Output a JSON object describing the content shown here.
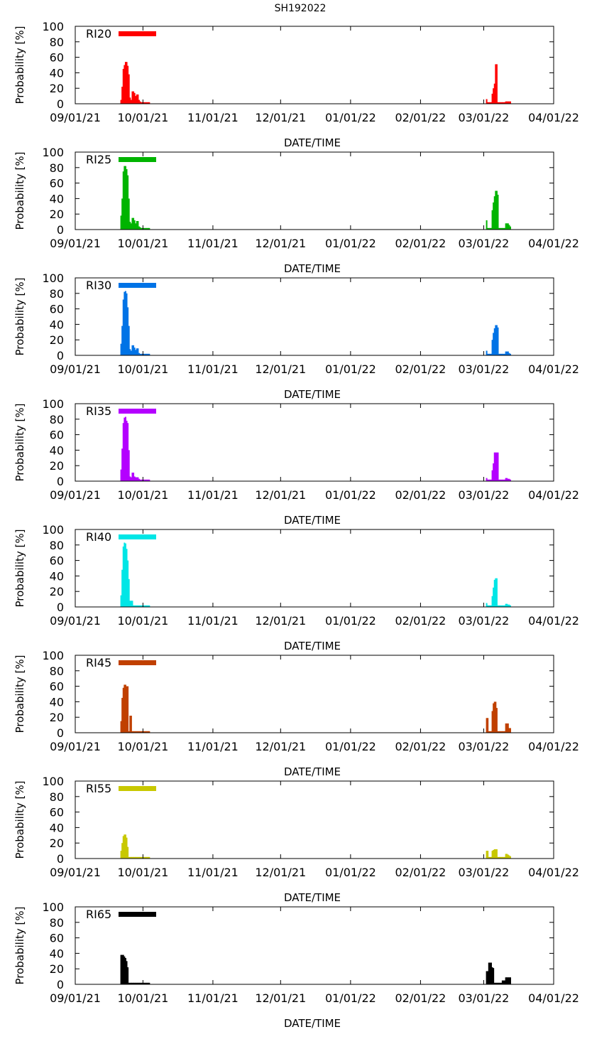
{
  "chart_data": {
    "type": "bar",
    "title": "SH192022",
    "xlabel": "DATE/TIME",
    "ylabel": "Probability [%]",
    "ylim": [
      0,
      100
    ],
    "yticks": [
      "0",
      "20",
      "40",
      "60",
      "80",
      "100"
    ],
    "x_ticks": [
      "09/01/21",
      "10/01/21",
      "11/01/21",
      "12/01/21",
      "01/01/22",
      "02/01/22",
      "03/01/22",
      "04/01/22"
    ],
    "x_range_days": [
      0,
      212
    ],
    "legend_location": "top-left",
    "panels": [
      {
        "name": "RI20",
        "color": "#ff0000",
        "series": [
          {
            "start_day": 20.0,
            "day_step": 0.5,
            "values": [
              5,
              22,
              45,
              50,
              54,
              54,
              49,
              38,
              8,
              5,
              16,
              16,
              14,
              10,
              12,
              12,
              5,
              3,
              2,
              2,
              2,
              2,
              2,
              2,
              2,
              2
            ]
          },
          {
            "start_day": 182.0,
            "day_step": 0.5,
            "values": [
              6,
              2,
              2,
              2,
              2,
              13,
              20,
              26,
              51,
              51,
              2,
              2,
              2,
              2,
              2,
              2,
              2,
              3,
              3,
              3,
              3,
              3
            ]
          }
        ]
      },
      {
        "name": "RI25",
        "color": "#00b400",
        "series": [
          {
            "start_day": 20.0,
            "day_step": 0.5,
            "values": [
              18,
              40,
              75,
              82,
              82,
              78,
              70,
              40,
              10,
              8,
              15,
              15,
              12,
              8,
              11,
              11,
              4,
              3,
              2,
              2,
              2,
              2,
              2,
              2,
              2,
              2
            ]
          },
          {
            "start_day": 182.0,
            "day_step": 0.5,
            "values": [
              12,
              2,
              2,
              2,
              2,
              25,
              35,
              43,
              50,
              50,
              45,
              2,
              2,
              2,
              2,
              2,
              2,
              8,
              8,
              8,
              6,
              4
            ]
          }
        ]
      },
      {
        "name": "RI30",
        "color": "#0073e6",
        "series": [
          {
            "start_day": 20.0,
            "day_step": 0.5,
            "values": [
              15,
              38,
              72,
              82,
              83,
              80,
              62,
              38,
              8,
              6,
              13,
              13,
              10,
              7,
              9,
              9,
              3,
              2,
              2,
              2,
              2,
              2,
              2,
              2,
              2,
              2
            ]
          },
          {
            "start_day": 182.0,
            "day_step": 0.5,
            "values": [
              6,
              2,
              2,
              2,
              2,
              20,
              29,
              35,
              39,
              39,
              36,
              2,
              2,
              2,
              2,
              2,
              2,
              5,
              5,
              5,
              3,
              2
            ]
          }
        ]
      },
      {
        "name": "RI35",
        "color": "#b400ff",
        "series": [
          {
            "start_day": 20.0,
            "day_step": 0.5,
            "values": [
              15,
              42,
              75,
              82,
              83,
              78,
              75,
              40,
              6,
              5,
              11,
              11,
              6,
              5,
              5,
              5,
              3,
              2,
              2,
              2,
              2,
              2,
              2,
              2,
              2,
              2
            ]
          },
          {
            "start_day": 182.0,
            "day_step": 0.5,
            "values": [
              4,
              2,
              2,
              2,
              2,
              14,
              23,
              37,
              37,
              37,
              37,
              2,
              2,
              2,
              2,
              2,
              2,
              4,
              4,
              3,
              3,
              2
            ]
          }
        ]
      },
      {
        "name": "RI40",
        "color": "#00e6e6",
        "series": [
          {
            "start_day": 20.0,
            "day_step": 0.5,
            "values": [
              15,
              48,
              78,
              83,
              82,
              75,
              60,
              36,
              8,
              8,
              8,
              2,
              2,
              2,
              2,
              2,
              2,
              2,
              2,
              2,
              2,
              2,
              2,
              2,
              2,
              2
            ]
          },
          {
            "start_day": 182.0,
            "day_step": 0.5,
            "values": [
              5,
              2,
              2,
              2,
              2,
              14,
              25,
              35,
              37,
              37,
              2,
              2,
              2,
              2,
              2,
              2,
              2,
              4,
              4,
              3,
              3,
              2
            ]
          }
        ]
      },
      {
        "name": "RI45",
        "color": "#c04000",
        "series": [
          {
            "start_day": 20.0,
            "day_step": 0.5,
            "values": [
              15,
              45,
              58,
              62,
              62,
              60,
              60,
              2,
              22,
              22,
              2,
              2,
              2,
              2,
              2,
              2,
              2,
              2,
              2,
              2,
              2,
              2,
              2,
              2,
              2,
              2
            ]
          },
          {
            "start_day": 182.0,
            "day_step": 0.5,
            "values": [
              19,
              19,
              2,
              2,
              2,
              28,
              38,
              40,
              40,
              32,
              2,
              2,
              2,
              2,
              2,
              2,
              2,
              12,
              12,
              12,
              6,
              6
            ]
          }
        ]
      },
      {
        "name": "RI55",
        "color": "#c8c800",
        "series": [
          {
            "start_day": 20.0,
            "day_step": 0.5,
            "values": [
              10,
              20,
              29,
              31,
              31,
              27,
              15,
              2,
              2,
              2,
              2,
              2,
              2,
              2,
              2,
              2,
              2,
              2,
              2,
              2,
              2,
              2,
              2,
              2,
              2,
              2
            ]
          },
          {
            "start_day": 182.0,
            "day_step": 0.5,
            "values": [
              10,
              10,
              2,
              2,
              2,
              10,
              11,
              12,
              12,
              12,
              2,
              2,
              2,
              2,
              2,
              2,
              2,
              6,
              6,
              5,
              4,
              3
            ]
          }
        ]
      },
      {
        "name": "RI65",
        "color": "#000000",
        "series": [
          {
            "start_day": 20.0,
            "day_step": 0.5,
            "values": [
              38,
              38,
              38,
              36,
              34,
              30,
              22,
              2,
              2,
              2,
              2,
              2,
              2,
              2,
              2,
              2,
              2,
              2,
              2,
              2,
              2,
              2,
              2,
              2,
              2,
              2
            ]
          },
          {
            "start_day": 182.0,
            "day_step": 0.5,
            "values": [
              17,
              17,
              28,
              28,
              28,
              22,
              21,
              2,
              2,
              2,
              2,
              2,
              2,
              2,
              5,
              5,
              5,
              9,
              9,
              9,
              9,
              9
            ]
          }
        ]
      }
    ]
  }
}
